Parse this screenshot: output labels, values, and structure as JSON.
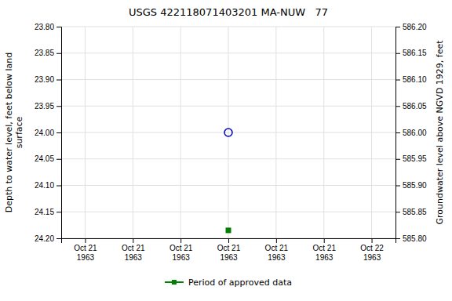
{
  "chart_data": {
    "type": "scatter",
    "title": "USGS 422118071403201 MA-NUW   77",
    "ylabel": "Depth to water level, feet below land\n surface",
    "y2label": "Groundwater level above NGVD 1929, feet",
    "categories": [
      "Oct 21\n1963",
      "Oct 21\n1963",
      "Oct 21\n1963",
      "Oct 21\n1963",
      "Oct 21\n1963",
      "Oct 21\n1963",
      "Oct 22\n1963"
    ],
    "ylim": [
      24.2,
      23.8
    ],
    "yticks": [
      {
        "value": 23.8,
        "label": "23.80"
      },
      23.85,
      {
        "value": 23.9,
        "label": "23.90"
      },
      23.95,
      {
        "value": 24,
        "label": "24.00"
      },
      24.05,
      {
        "value": 24.1,
        "label": "24.10"
      },
      24.15,
      {
        "value": 24.2,
        "label": "24.20"
      }
    ],
    "y2lim": [
      585.8,
      586.2
    ],
    "y2ticks": [
      {
        "value": 586.2,
        "label": "586.20"
      },
      586.15,
      {
        "value": 586.1,
        "label": "586.10"
      },
      586.05,
      {
        "value": 586,
        "label": "586.00"
      },
      585.95,
      {
        "value": 585.9,
        "label": "585.90"
      },
      585.85,
      {
        "value": 585.8,
        "label": "585.80"
      }
    ],
    "series": [
      {
        "color": "#0000cc",
        "marker": "open-circle",
        "values": [
          null,
          null,
          null,
          24.0,
          null,
          null,
          null
        ]
      },
      {
        "name": "Period of approved data",
        "color": "#008000",
        "marker": "square",
        "line_style": "solid",
        "values": [
          null,
          null,
          null,
          24.185,
          null,
          null,
          null
        ]
      }
    ],
    "grid": true,
    "legend": "bottom"
  }
}
